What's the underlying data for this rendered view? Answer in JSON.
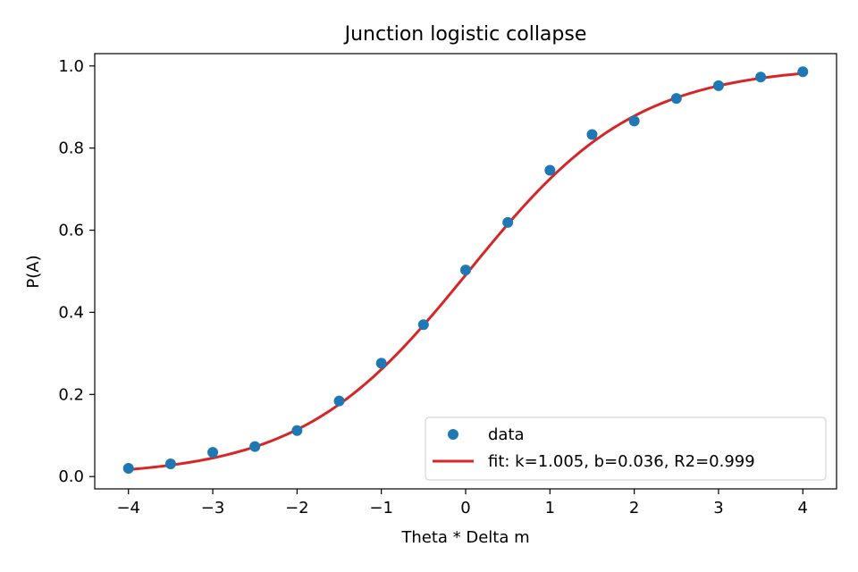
{
  "chart_data": {
    "type": "scatter",
    "title": "Junction logistic collapse",
    "xlabel": "Theta * Delta m",
    "ylabel": "P(A)",
    "xlim": [
      -4.4,
      4.4
    ],
    "ylim": [
      -0.03,
      1.03
    ],
    "xticks": [
      -4,
      -3,
      -2,
      -1,
      0,
      1,
      2,
      3,
      4
    ],
    "xtick_labels": [
      "−4",
      "−3",
      "−2",
      "−1",
      "0",
      "1",
      "2",
      "3",
      "4"
    ],
    "yticks": [
      0.0,
      0.2,
      0.4,
      0.6,
      0.8,
      1.0
    ],
    "ytick_labels": [
      "0.0",
      "0.2",
      "0.4",
      "0.6",
      "0.8",
      "1.0"
    ],
    "grid": false,
    "legend_position": "lower-right",
    "series": [
      {
        "name": "data",
        "kind": "scatter",
        "color": "#1f77b4",
        "x": [
          -4,
          -3.5,
          -3,
          -2.5,
          -2,
          -1.5,
          -1,
          -0.5,
          0,
          0.5,
          1,
          1.5,
          2,
          2.5,
          3,
          3.5,
          4
        ],
        "y": [
          0.02,
          0.031,
          0.059,
          0.073,
          0.112,
          0.184,
          0.276,
          0.37,
          0.503,
          0.619,
          0.746,
          0.833,
          0.866,
          0.921,
          0.952,
          0.973,
          0.986
        ]
      },
      {
        "name": "fit: k=1.005, b=0.036, R2=0.999",
        "kind": "line",
        "color": "#d62728",
        "fit": {
          "k": 1.005,
          "b": 0.036,
          "R2": 0.999
        }
      }
    ]
  }
}
